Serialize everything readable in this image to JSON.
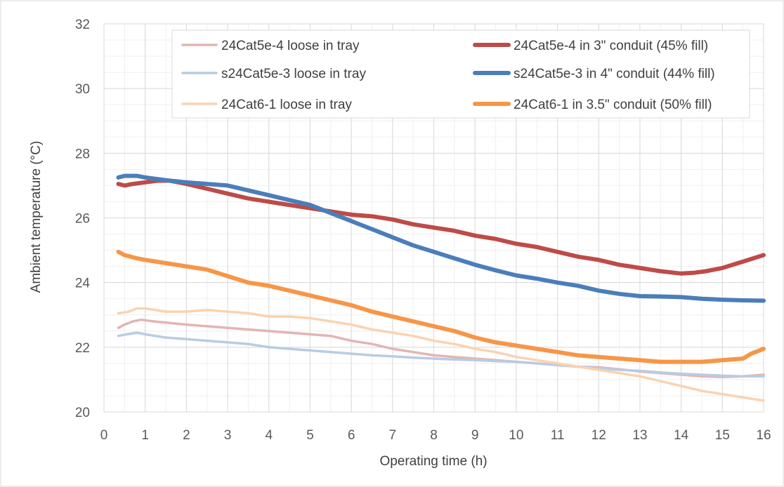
{
  "chart_data": {
    "type": "line",
    "xlabel": "Operating time (h)",
    "ylabel": "Ambient temperature (°C)",
    "xlim": [
      0,
      16
    ],
    "ylim": [
      20,
      32
    ],
    "x_ticks": [
      0,
      1,
      2,
      3,
      4,
      5,
      6,
      7,
      8,
      9,
      10,
      11,
      12,
      13,
      14,
      15,
      16
    ],
    "y_ticks": [
      20,
      22,
      24,
      26,
      28,
      30,
      32
    ],
    "minor_grid_x": 0.5,
    "minor_grid_y": 0.5,
    "grid": true,
    "legend_position": "top-right",
    "series": [
      {
        "name": "24Cat5e-4 loose in tray",
        "color": "#e3b5b3",
        "width": "thin",
        "x": [
          0.35,
          0.5,
          0.7,
          0.9,
          1.2,
          1.6,
          2,
          2.5,
          3,
          3.5,
          4,
          4.5,
          5,
          5.5,
          6,
          6.5,
          7,
          7.5,
          8,
          8.5,
          9,
          9.5,
          10,
          10.5,
          11,
          11.5,
          12,
          12.5,
          13,
          13.5,
          14,
          14.5,
          15,
          15.5,
          16
        ],
        "values": [
          22.6,
          22.7,
          22.8,
          22.85,
          22.8,
          22.75,
          22.7,
          22.65,
          22.6,
          22.55,
          22.5,
          22.45,
          22.4,
          22.35,
          22.2,
          22.1,
          21.95,
          21.85,
          21.75,
          21.7,
          21.65,
          21.6,
          21.55,
          21.5,
          21.45,
          21.4,
          21.38,
          21.32,
          21.25,
          21.2,
          21.15,
          21.1,
          21.08,
          21.1,
          21.15
        ]
      },
      {
        "name": "24Cat5e-4 in 3\" conduit (45% fill)",
        "color": "#be4b48",
        "width": "thick",
        "x": [
          0.35,
          0.5,
          0.7,
          1,
          1.3,
          1.6,
          2,
          2.5,
          3,
          3.5,
          4,
          4.5,
          5,
          5.5,
          6,
          6.5,
          7,
          7.5,
          8,
          8.5,
          9,
          9.5,
          10,
          10.5,
          11,
          11.5,
          12,
          12.5,
          13,
          13.5,
          14,
          14.3,
          14.6,
          15,
          15.5,
          16
        ],
        "values": [
          27.05,
          27.0,
          27.05,
          27.1,
          27.15,
          27.15,
          27.05,
          26.9,
          26.75,
          26.6,
          26.5,
          26.4,
          26.3,
          26.2,
          26.1,
          26.05,
          25.95,
          25.8,
          25.7,
          25.6,
          25.45,
          25.35,
          25.2,
          25.1,
          24.95,
          24.8,
          24.7,
          24.55,
          24.45,
          24.35,
          24.28,
          24.3,
          24.35,
          24.45,
          24.65,
          24.85
        ]
      },
      {
        "name": "s24Cat5e-3 loose in tray",
        "color": "#b8cce4",
        "width": "thin",
        "x": [
          0.35,
          0.55,
          0.8,
          1,
          1.5,
          2,
          2.5,
          3,
          3.5,
          4,
          4.5,
          5,
          5.5,
          6,
          6.5,
          7,
          7.5,
          8,
          8.5,
          9,
          9.5,
          10,
          10.5,
          11,
          11.5,
          12,
          12.5,
          13,
          13.5,
          14,
          14.5,
          15,
          15.5,
          16
        ],
        "values": [
          22.35,
          22.4,
          22.45,
          22.4,
          22.3,
          22.25,
          22.2,
          22.15,
          22.1,
          22.0,
          21.95,
          21.9,
          21.85,
          21.8,
          21.75,
          21.72,
          21.68,
          21.65,
          21.62,
          21.6,
          21.57,
          21.55,
          21.5,
          21.45,
          21.4,
          21.35,
          21.3,
          21.27,
          21.22,
          21.18,
          21.15,
          21.12,
          21.1,
          21.1
        ]
      },
      {
        "name": "s24Cat5e-3 in 4\" conduit (44% fill)",
        "color": "#4a7ebb",
        "width": "thick",
        "x": [
          0.35,
          0.5,
          0.8,
          1,
          1.3,
          1.6,
          2,
          2.5,
          3,
          3.5,
          4,
          4.5,
          5,
          5.5,
          6,
          6.5,
          7,
          7.5,
          8,
          8.5,
          9,
          9.5,
          10,
          10.5,
          11,
          11.5,
          12,
          12.5,
          13,
          13.5,
          14,
          14.5,
          15,
          15.5,
          16
        ],
        "values": [
          27.25,
          27.3,
          27.3,
          27.25,
          27.2,
          27.15,
          27.1,
          27.05,
          27.0,
          26.85,
          26.7,
          26.55,
          26.4,
          26.15,
          25.9,
          25.65,
          25.4,
          25.15,
          24.95,
          24.75,
          24.55,
          24.38,
          24.22,
          24.12,
          24.0,
          23.9,
          23.75,
          23.65,
          23.58,
          23.57,
          23.55,
          23.5,
          23.47,
          23.45,
          23.44
        ]
      },
      {
        "name": "24Cat6-1 loose in tray",
        "color": "#fbd2b0",
        "width": "thin",
        "x": [
          0.35,
          0.6,
          0.8,
          1,
          1.5,
          2,
          2.5,
          3,
          3.5,
          4,
          4.5,
          5,
          5.5,
          6,
          6.5,
          7,
          7.5,
          8,
          8.5,
          9,
          9.5,
          10,
          10.5,
          11,
          11.5,
          12,
          12.5,
          13,
          13.5,
          14,
          14.5,
          15,
          15.5,
          16
        ],
        "values": [
          23.05,
          23.1,
          23.2,
          23.2,
          23.1,
          23.1,
          23.15,
          23.1,
          23.05,
          22.95,
          22.95,
          22.9,
          22.8,
          22.7,
          22.55,
          22.45,
          22.35,
          22.2,
          22.1,
          21.95,
          21.85,
          21.7,
          21.6,
          21.5,
          21.4,
          21.3,
          21.2,
          21.1,
          20.95,
          20.8,
          20.65,
          20.55,
          20.45,
          20.35
        ]
      },
      {
        "name": "24Cat6-1 in 3.5\" conduit (50% fill)",
        "color": "#f79646",
        "width": "thick",
        "x": [
          0.35,
          0.5,
          0.8,
          1,
          1.5,
          2,
          2.5,
          3,
          3.5,
          4,
          4.5,
          5,
          5.5,
          6,
          6.5,
          7,
          7.5,
          8,
          8.5,
          9,
          9.5,
          10,
          10.5,
          11,
          11.5,
          12,
          12.5,
          13,
          13.5,
          14,
          14.5,
          15,
          15.5,
          15.7,
          16
        ],
        "values": [
          24.95,
          24.85,
          24.75,
          24.7,
          24.6,
          24.5,
          24.4,
          24.2,
          24.0,
          23.9,
          23.75,
          23.6,
          23.45,
          23.3,
          23.1,
          22.95,
          22.8,
          22.65,
          22.5,
          22.3,
          22.15,
          22.05,
          21.95,
          21.85,
          21.75,
          21.7,
          21.65,
          21.6,
          21.55,
          21.55,
          21.55,
          21.6,
          21.65,
          21.8,
          21.95
        ]
      }
    ]
  }
}
